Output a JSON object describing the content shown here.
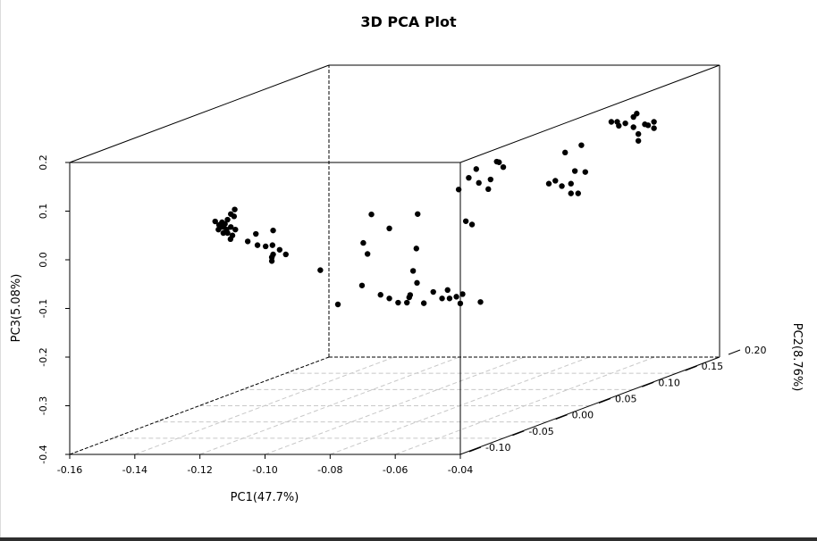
{
  "chart_data": {
    "type": "scatter3d",
    "title": "3D PCA Plot",
    "xlabel": "PC1(47.7%)",
    "ylabel": "PC2(8.76%)",
    "zlabel": "PC3(5.08%)",
    "xlim": [
      -0.16,
      -0.04
    ],
    "ylim": [
      -0.1,
      0.2
    ],
    "zlim": [
      -0.4,
      0.2
    ],
    "xticks": [
      "-0.16",
      "-0.14",
      "-0.12",
      "-0.10",
      "-0.08",
      "-0.06",
      "-0.04"
    ],
    "xtick_values": [
      -0.16,
      -0.14,
      -0.12,
      -0.1,
      -0.08,
      -0.06,
      -0.04
    ],
    "yticks": [
      "-0.10",
      "-0.05",
      "0.00",
      "0.05",
      "0.10",
      "0.15",
      "0.20"
    ],
    "ytick_values": [
      -0.1,
      -0.05,
      0.0,
      0.05,
      0.1,
      0.15,
      0.2
    ],
    "zticks": [
      "-0.4",
      "-0.3",
      "-0.2",
      "-0.1",
      "0.0",
      "0.1",
      "0.2"
    ],
    "ztick_values": [
      -0.4,
      -0.3,
      -0.2,
      -0.1,
      0.0,
      0.1,
      0.2
    ],
    "grid": "floor",
    "point_color": "#000000",
    "points": [
      {
        "x": -0.1155,
        "y": -0.0993,
        "z": 0.0784
      },
      {
        "x": -0.1143,
        "y": -0.0993,
        "z": 0.071
      },
      {
        "x": -0.1138,
        "y": -0.0993,
        "z": 0.0669
      },
      {
        "x": -0.1145,
        "y": -0.0993,
        "z": 0.0616
      },
      {
        "x": -0.113,
        "y": -0.0993,
        "z": 0.0669
      },
      {
        "x": -0.1134,
        "y": -0.0993,
        "z": 0.0766
      },
      {
        "x": -0.1125,
        "y": -0.0993,
        "z": 0.0732
      },
      {
        "x": -0.1117,
        "y": -0.0993,
        "z": 0.082
      },
      {
        "x": -0.1107,
        "y": -0.0993,
        "z": 0.0935
      },
      {
        "x": -0.1095,
        "y": -0.0993,
        "z": 0.1029
      },
      {
        "x": -0.1097,
        "y": -0.0993,
        "z": 0.0888
      },
      {
        "x": -0.112,
        "y": -0.0993,
        "z": 0.0616
      },
      {
        "x": -0.113,
        "y": -0.0993,
        "z": 0.0545
      },
      {
        "x": -0.1117,
        "y": -0.0993,
        "z": 0.0545
      },
      {
        "x": -0.1107,
        "y": -0.0993,
        "z": 0.0669
      },
      {
        "x": -0.1108,
        "y": -0.0993,
        "z": 0.042
      },
      {
        "x": -0.1102,
        "y": -0.0993,
        "z": 0.0496
      },
      {
        "x": -0.1093,
        "y": -0.0993,
        "z": 0.0616
      },
      {
        "x": -0.1055,
        "y": -0.0993,
        "z": 0.0373
      },
      {
        "x": -0.103,
        "y": -0.0993,
        "z": 0.0527
      },
      {
        "x": -0.1025,
        "y": -0.0993,
        "z": 0.0296
      },
      {
        "x": -0.1,
        "y": -0.0993,
        "z": 0.0271
      },
      {
        "x": -0.0979,
        "y": -0.0993,
        "z": 0.0296
      },
      {
        "x": -0.0977,
        "y": -0.0993,
        "z": 0.0598
      },
      {
        "x": -0.0977,
        "y": -0.0993,
        "z": 0.0106
      },
      {
        "x": -0.0981,
        "y": -0.0993,
        "z": -0.003
      },
      {
        "x": -0.0981,
        "y": -0.0993,
        "z": 0.0048
      },
      {
        "x": -0.0957,
        "y": -0.0993,
        "z": 0.0201
      },
      {
        "x": -0.0938,
        "y": -0.0993,
        "z": 0.0106
      },
      {
        "x": -0.0832,
        "y": -0.0993,
        "z": -0.0218
      },
      {
        "x": -0.0778,
        "y": -0.0993,
        "z": -0.0922
      },
      {
        "x": -0.07,
        "y": -0.0993,
        "z": 0.0342
      },
      {
        "x": -0.0687,
        "y": -0.0993,
        "z": 0.0115
      },
      {
        "x": -0.0675,
        "y": -0.0993,
        "z": 0.0928
      },
      {
        "x": -0.0704,
        "y": -0.0993,
        "z": -0.0533
      },
      {
        "x": -0.0647,
        "y": -0.0993,
        "z": -0.0724
      },
      {
        "x": -0.062,
        "y": -0.0993,
        "z": 0.064
      },
      {
        "x": -0.062,
        "y": -0.0993,
        "z": -0.0799
      },
      {
        "x": -0.0593,
        "y": -0.0993,
        "z": -0.0886
      },
      {
        "x": -0.0566,
        "y": -0.0993,
        "z": -0.0886
      },
      {
        "x": -0.0559,
        "y": -0.0993,
        "z": -0.0777
      },
      {
        "x": -0.0556,
        "y": -0.0993,
        "z": -0.0728
      },
      {
        "x": -0.0547,
        "y": -0.0993,
        "z": -0.0233
      },
      {
        "x": -0.0535,
        "y": -0.0993,
        "z": -0.0479
      },
      {
        "x": -0.0537,
        "y": -0.0993,
        "z": 0.0227
      },
      {
        "x": -0.0533,
        "y": -0.0993,
        "z": 0.0935
      },
      {
        "x": -0.0514,
        "y": -0.0993,
        "z": -0.0897
      },
      {
        "x": -0.0485,
        "y": -0.0993,
        "z": -0.0666
      },
      {
        "x": -0.0458,
        "y": -0.0993,
        "z": -0.0799
      },
      {
        "x": -0.0435,
        "y": -0.0993,
        "z": -0.0799
      },
      {
        "x": -0.0441,
        "y": -0.0993,
        "z": -0.0626
      },
      {
        "x": -0.0414,
        "y": -0.0993,
        "z": -0.0764
      },
      {
        "x": -0.0402,
        "y": -0.0993,
        "z": -0.0902
      },
      {
        "x": -0.0395,
        "y": -0.0993,
        "z": -0.071
      },
      {
        "x": -0.034,
        "y": -0.0993,
        "z": -0.0872
      },
      {
        "x": -0.0407,
        "y": -0.0993,
        "z": 0.144
      },
      {
        "x": -0.0385,
        "y": -0.0993,
        "z": 0.0788
      },
      {
        "x": -0.0376,
        "y": -0.0993,
        "z": 0.168
      },
      {
        "x": -0.0366,
        "y": -0.0993,
        "z": 0.072
      },
      {
        "x": -0.0353,
        "y": -0.0993,
        "z": 0.186
      },
      {
        "x": -0.0345,
        "y": -0.0993,
        "z": 0.1576
      },
      {
        "x": -0.0316,
        "y": -0.0993,
        "z": 0.1448
      },
      {
        "x": -0.0309,
        "y": -0.0993,
        "z": 0.1646
      },
      {
        "x": -0.029,
        "y": -0.0993,
        "z": 0.2013
      },
      {
        "x": -0.0283,
        "y": -0.0993,
        "z": 0.2
      },
      {
        "x": -0.027,
        "y": -0.0993,
        "z": 0.19
      },
      {
        "x": -0.013,
        "y": -0.0993,
        "z": 0.156
      },
      {
        "x": -0.011,
        "y": -0.0993,
        "z": 0.162
      },
      {
        "x": -0.009,
        "y": -0.0993,
        "z": 0.151
      },
      {
        "x": -0.0062,
        "y": -0.0993,
        "z": 0.156
      },
      {
        "x": -0.0062,
        "y": -0.0993,
        "z": 0.136
      },
      {
        "x": -0.008,
        "y": -0.0993,
        "z": 0.22
      },
      {
        "x": -0.005,
        "y": -0.0993,
        "z": 0.182
      },
      {
        "x": -0.004,
        "y": -0.0993,
        "z": 0.136
      },
      {
        "x": -0.003,
        "y": -0.0993,
        "z": 0.235
      },
      {
        "x": -0.0018,
        "y": -0.0993,
        "z": 0.18
      },
      {
        "x": 0.0062,
        "y": -0.0993,
        "z": 0.283
      },
      {
        "x": 0.008,
        "y": -0.0993,
        "z": 0.283
      },
      {
        "x": 0.0085,
        "y": -0.0993,
        "z": 0.275
      },
      {
        "x": 0.0105,
        "y": -0.0993,
        "z": 0.28
      },
      {
        "x": 0.013,
        "y": -0.0993,
        "z": 0.272
      },
      {
        "x": 0.013,
        "y": -0.0993,
        "z": 0.293
      },
      {
        "x": 0.014,
        "y": -0.0993,
        "z": 0.3
      },
      {
        "x": 0.0145,
        "y": -0.0993,
        "z": 0.258
      },
      {
        "x": 0.0145,
        "y": -0.0993,
        "z": 0.244
      },
      {
        "x": 0.0165,
        "y": -0.0993,
        "z": 0.278
      },
      {
        "x": 0.0175,
        "y": -0.0993,
        "z": 0.276
      },
      {
        "x": 0.0193,
        "y": -0.0993,
        "z": 0.27
      },
      {
        "x": 0.0193,
        "y": -0.0993,
        "z": 0.283
      }
    ]
  }
}
